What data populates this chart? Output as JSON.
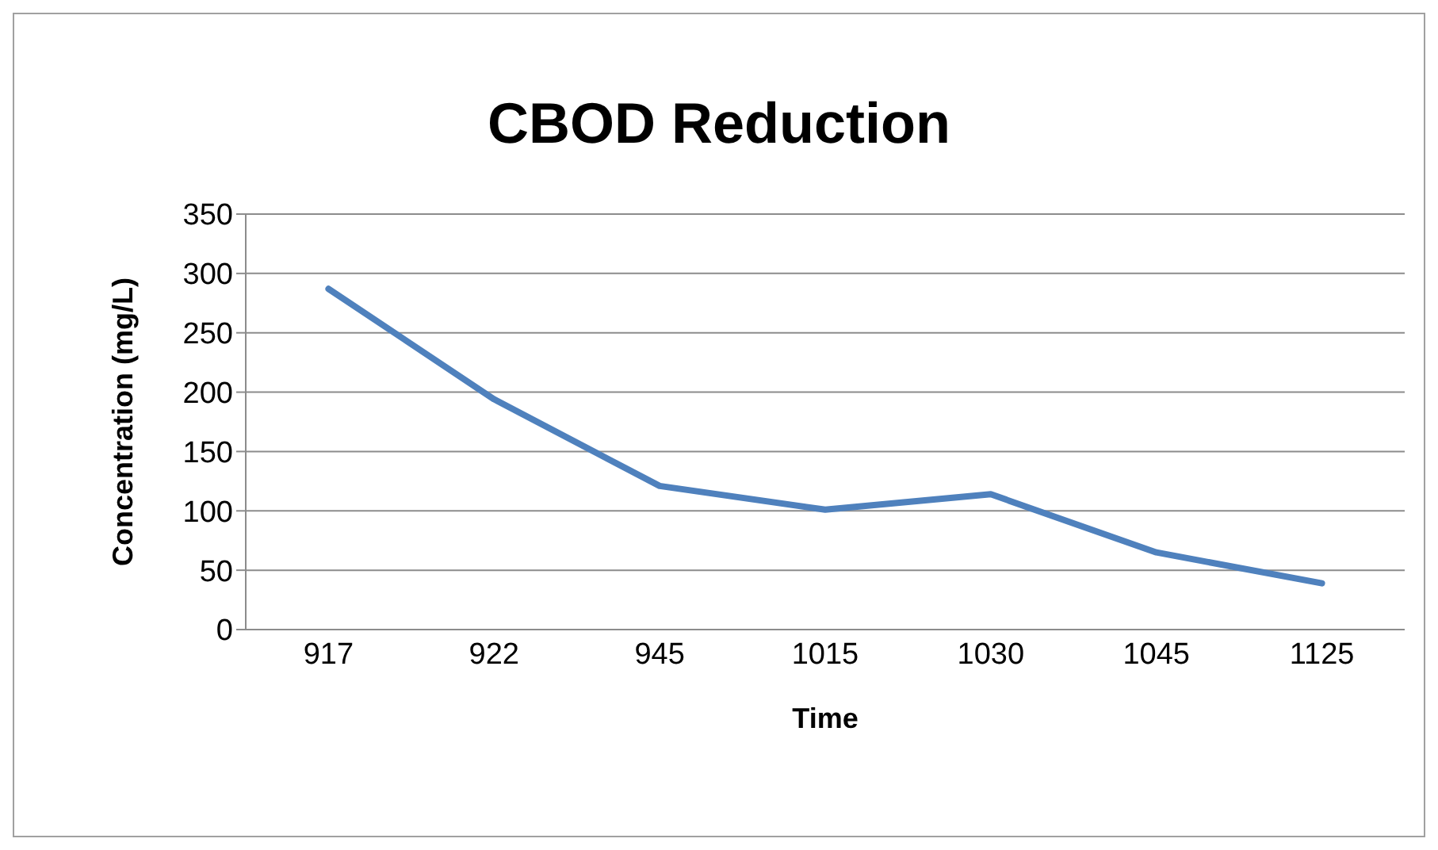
{
  "chart_data": {
    "type": "line",
    "title": "CBOD Reduction",
    "xlabel": "Time",
    "ylabel": "Concentration (mg/L)",
    "categories": [
      "917",
      "922",
      "945",
      "1015",
      "1030",
      "1045",
      "1125"
    ],
    "series": [
      {
        "color": "#4f81bd",
        "values": [
          287,
          194,
          121,
          101,
          114,
          65,
          39
        ]
      }
    ],
    "ylim": [
      0,
      350
    ],
    "yticks": [
      0,
      50,
      100,
      150,
      200,
      250,
      300,
      350
    ],
    "grid": "y",
    "legend": false,
    "marker": "none",
    "line_style": "solid"
  }
}
